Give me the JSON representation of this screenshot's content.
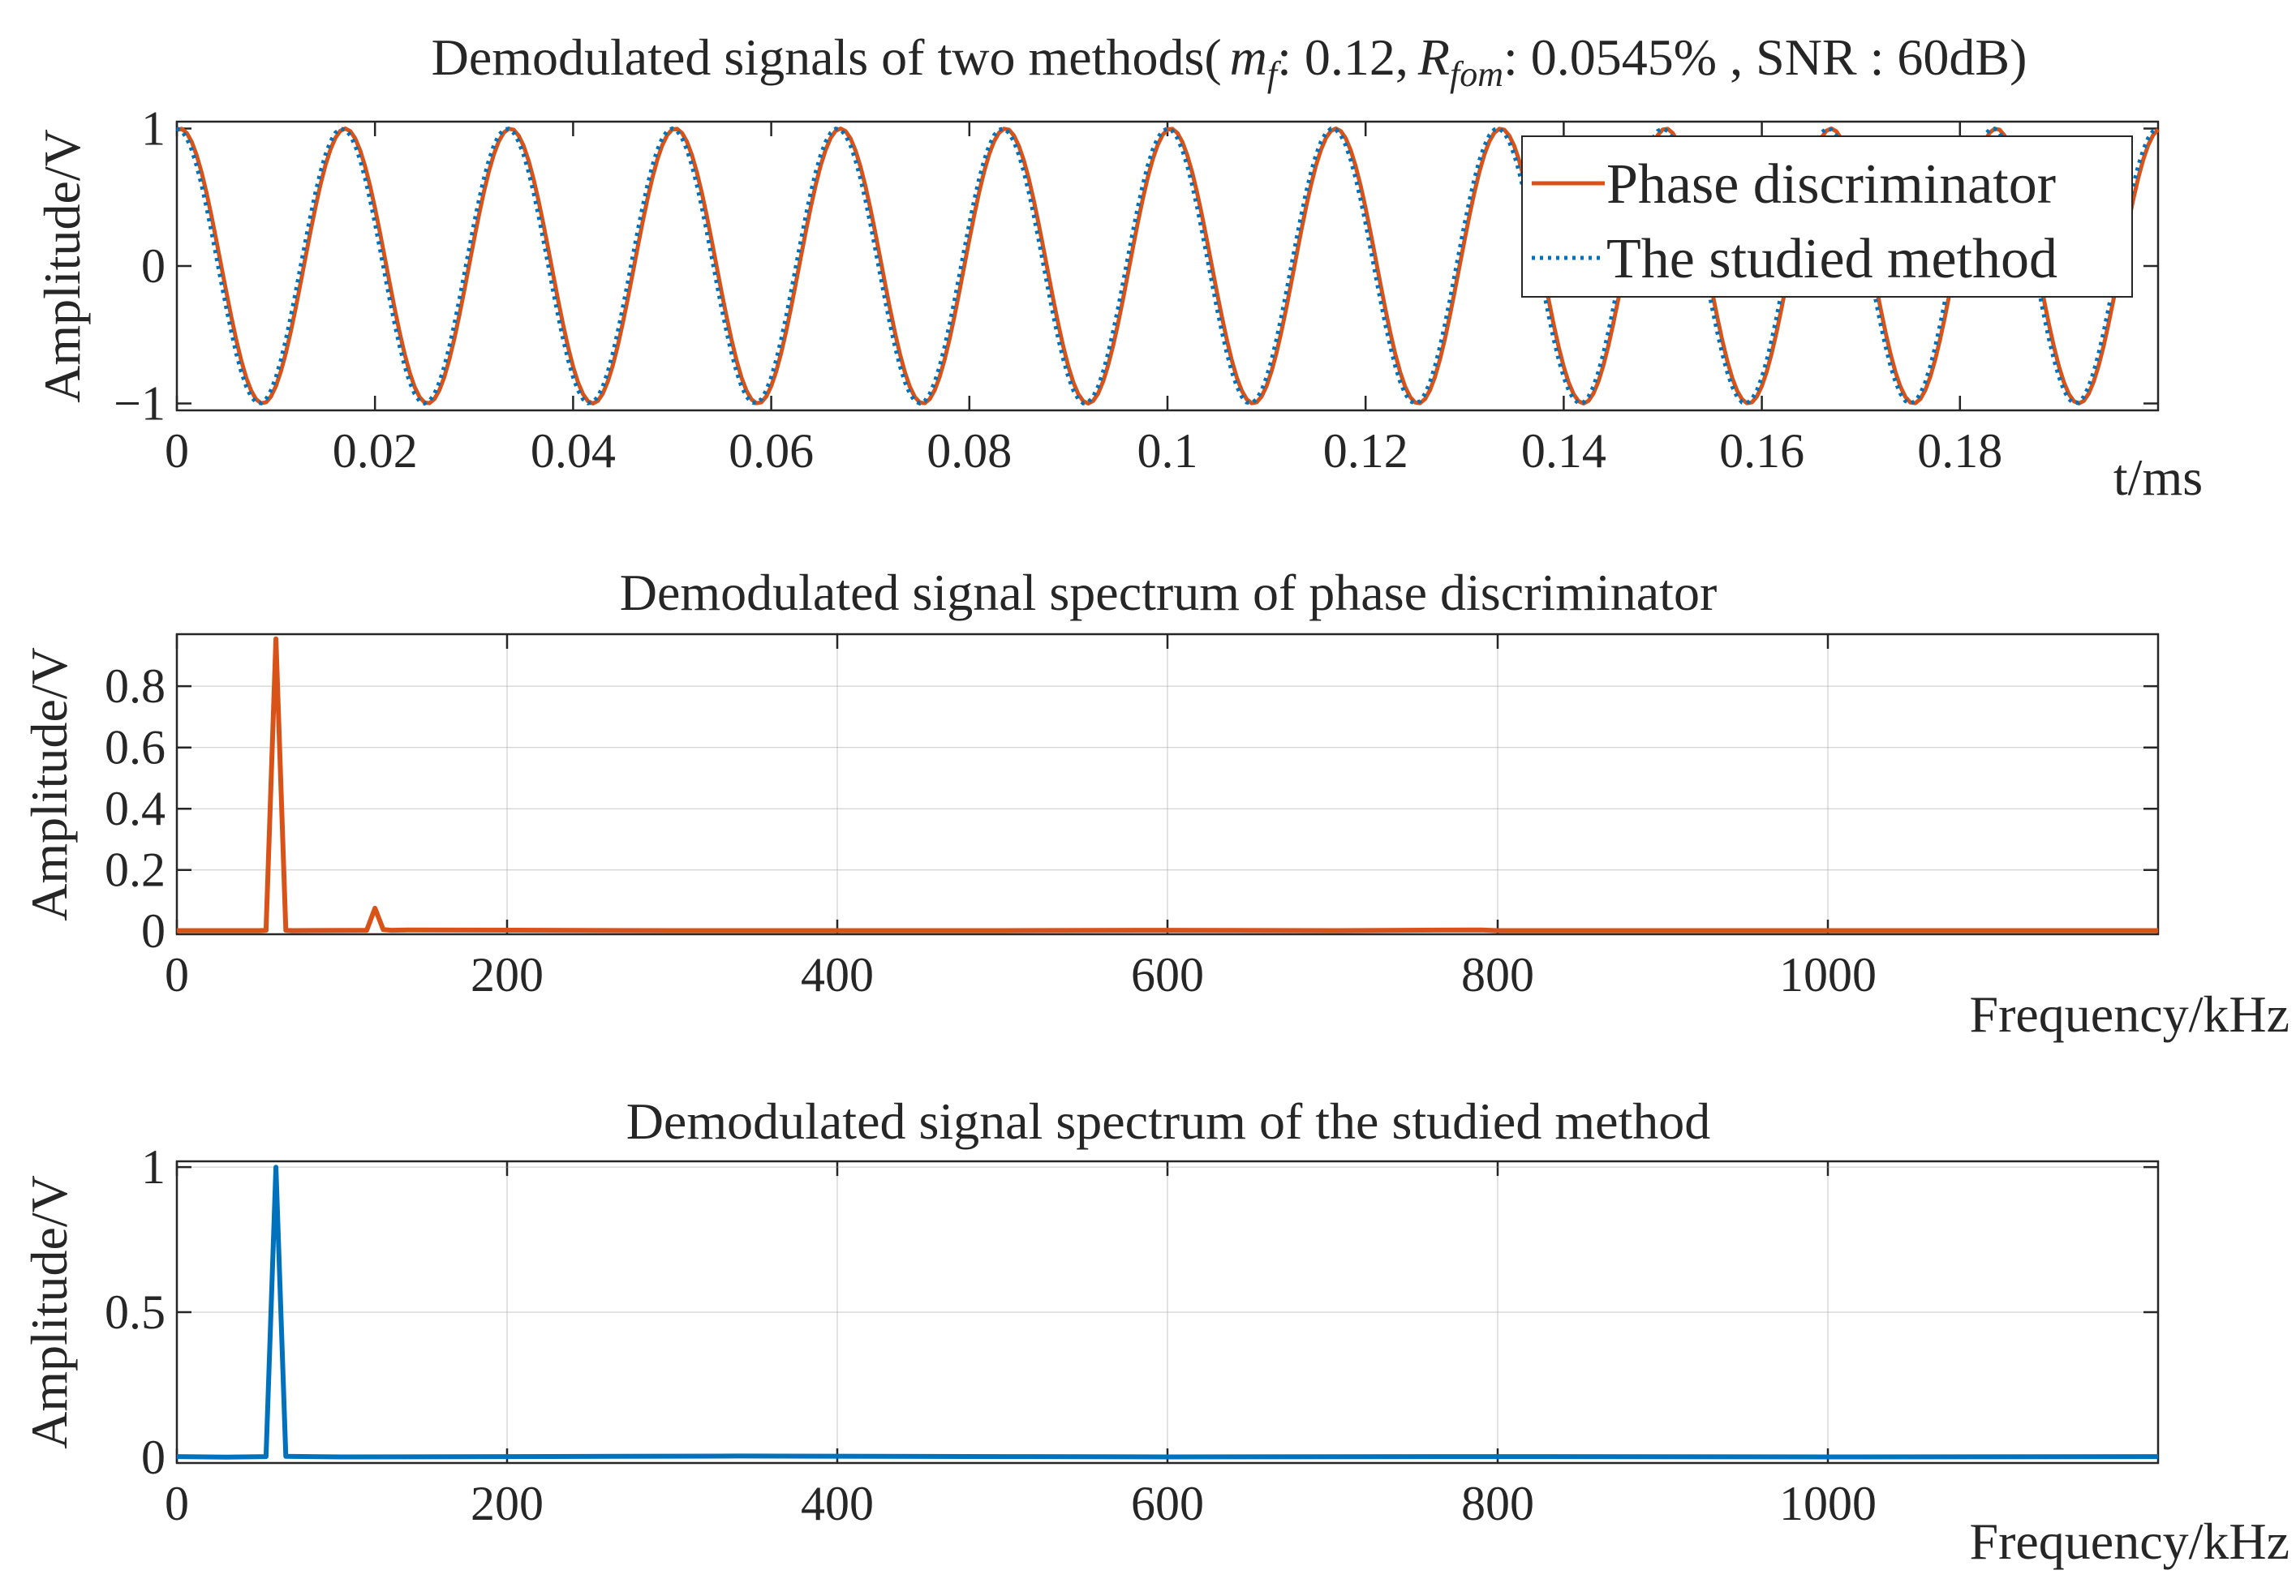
{
  "figure": {
    "colors": {
      "phase": "#d95319",
      "studied": "#0072bd",
      "axis": "#262626",
      "background": "#ffffff"
    },
    "legend_location": "top-right"
  },
  "chart_data": [
    {
      "type": "line",
      "title_prefix": "Demodulated signals of two methods(",
      "title_mf_symbol": "m",
      "title_mf_sub": "f",
      "title_mf_value": ": 0.12,",
      "title_r_symbol": "R",
      "title_r_sub": "fom",
      "title_r_value": ": 0.0545% , SNR : 60dB)",
      "xlabel": "t/ms",
      "ylabel": "Amplitude/V",
      "xlim": [
        0,
        0.2
      ],
      "ylim": [
        -1.05,
        1.05
      ],
      "xticks": [
        0,
        0.02,
        0.04,
        0.06,
        0.08,
        0.1,
        0.12,
        0.14,
        0.16,
        0.18
      ],
      "xtick_labels": [
        "0",
        "0.02",
        "0.04",
        "0.06",
        "0.08",
        "0.1",
        "0.12",
        "0.14",
        "0.16",
        "0.18"
      ],
      "yticks": [
        -1,
        0,
        1
      ],
      "ytick_labels": [
        "−1",
        "0",
        "1"
      ],
      "signal": {
        "function": "cosine",
        "frequency_khz": 60,
        "amplitude": 1,
        "samples": 401
      },
      "series": [
        {
          "name": "Phase discriminator",
          "style": "solid",
          "color": "#d95319",
          "phase_shift_rad": 0.12
        },
        {
          "name": "The studied method",
          "style": "dotted",
          "color": "#0072bd",
          "phase_shift_rad": 0
        }
      ],
      "legend": [
        "Phase discriminator",
        "The studied method"
      ]
    },
    {
      "type": "line",
      "title": "Demodulated signal spectrum of phase discriminator",
      "xlabel": "Frequency/kHz",
      "ylabel": "Amplitude/V",
      "xlim": [
        0,
        1200
      ],
      "ylim": [
        -0.01,
        0.97
      ],
      "xticks": [
        0,
        200,
        400,
        600,
        800,
        1000
      ],
      "xtick_labels": [
        "0",
        "200",
        "400",
        "600",
        "800",
        "1000"
      ],
      "yticks": [
        0,
        0.2,
        0.4,
        0.6,
        0.8
      ],
      "ytick_labels": [
        "0",
        "0.2",
        "0.4",
        "0.6",
        "0.8"
      ],
      "series": [
        {
          "name": "Phase discriminator",
          "color": "#d95319",
          "x": [
            0,
            50,
            54,
            60,
            66,
            70,
            115,
            120,
            125,
            130,
            140,
            300,
            500,
            600,
            700,
            790,
            800,
            1000,
            1200
          ],
          "y": [
            0.002,
            0.002,
            0.003,
            0.955,
            0.003,
            0.002,
            0.003,
            0.075,
            0.005,
            0.003,
            0.004,
            0.002,
            0.002,
            0.003,
            0.002,
            0.004,
            0.002,
            0.002,
            0.002
          ]
        }
      ]
    },
    {
      "type": "line",
      "title": "Demodulated signal spectrum of the studied method",
      "xlabel": "Frequency/kHz",
      "ylabel": "Amplitude/V",
      "xlim": [
        0,
        1200
      ],
      "ylim": [
        -0.02,
        1.02
      ],
      "xticks": [
        0,
        200,
        400,
        600,
        800,
        1000
      ],
      "xtick_labels": [
        "0",
        "200",
        "400",
        "600",
        "800",
        "1000"
      ],
      "yticks": [
        0,
        0.5,
        1
      ],
      "ytick_labels": [
        "0",
        "0.5",
        "1"
      ],
      "series": [
        {
          "name": "The studied method",
          "color": "#0072bd",
          "x": [
            0,
            30,
            54,
            60,
            66,
            100,
            200,
            340,
            500,
            600,
            800,
            1000,
            1200
          ],
          "y": [
            0.002,
            0.0,
            0.002,
            1.0,
            0.003,
            0.001,
            0.002,
            0.004,
            0.002,
            0.001,
            0.002,
            0.001,
            0.002
          ]
        }
      ]
    }
  ]
}
